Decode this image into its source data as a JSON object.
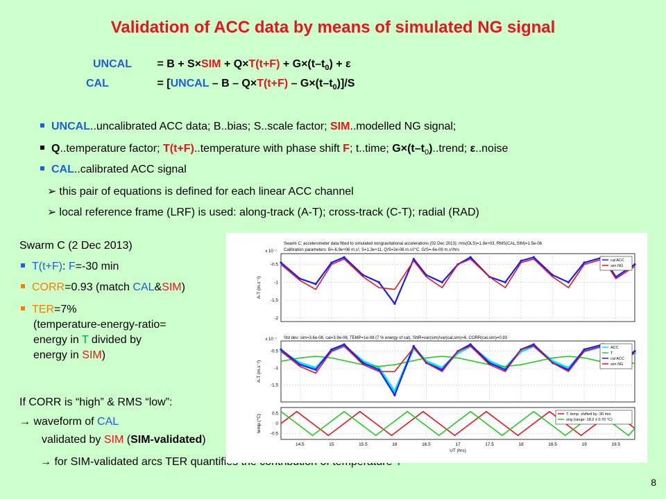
{
  "slide": {
    "title": "Validation of ACC data by means of simulated NG signal",
    "page_number": "8"
  },
  "equations": {
    "uncal_lhs": "UNCAL",
    "uncal_rhs": [
      "= B + S×",
      "SIM",
      " + Q×",
      "T(t+F)",
      " + G×(t–t",
      "0",
      ") + ε"
    ],
    "cal_lhs": "CAL",
    "cal_rhs": [
      "= [",
      "UNCAL",
      " – B – Q×",
      "T(t+F)",
      " – G×(t–t",
      "0",
      ")]/S"
    ]
  },
  "bullets": {
    "b1": [
      "UNCAL",
      "..uncalibrated ACC data; B..bias; S..scale factor; ",
      "SIM",
      "..modelled NG signal;"
    ],
    "b2": [
      "Q",
      "..temperature factor; ",
      "T(t+F)",
      "..temperature with phase shift ",
      "F",
      "; t..time; ",
      "G×(t–t",
      "0",
      ")",
      "..trend; ",
      "ε",
      "..noise"
    ],
    "b3": [
      "CAL",
      "..calibrated ACC signal"
    ],
    "sub1": "this pair of equations is defined for each linear ACC channel",
    "sub2": "local reference frame (LRF) is used: along-track (A-T); cross-track (C-T); radial (RAD)"
  },
  "left": {
    "heading": "Swarm C (2 Dec 2013)",
    "i1": [
      "T(t+F)",
      ": ",
      "F",
      "=-30 min"
    ],
    "i2": [
      "CORR",
      "=0.93 (match ",
      "CAL",
      "&",
      "SIM",
      ")"
    ],
    "i3": [
      "TER",
      "=7%"
    ],
    "i3_l2": "(temperature-energy-ratio=",
    "i3_l3": [
      "energy in ",
      "T",
      " divided by"
    ],
    "i3_l4": [
      "energy in ",
      "SIM",
      ")"
    ],
    "corr": "If CORR  is “high” & RMS “low”:",
    "arrow1": [
      "→ waveform of ",
      "CAL"
    ],
    "arrow1b": [
      "validated by ",
      "SIM",
      " (",
      "SIM-validated",
      ")"
    ],
    "arrow2": [
      "→ for SIM-validated arcs TER quantifies the contribution of temperature ",
      "T"
    ]
  },
  "colors": {
    "background": "#ccffcc",
    "title_red": "#e8141e",
    "blue": "#1f5fd6",
    "orange": "#ff7a00",
    "green": "#00a44a",
    "cal_acc": "#1a1aff",
    "acc": "#00e5ff",
    "temp": "#22cc22",
    "sim": "#e8141e"
  },
  "chart_data": [
    {
      "type": "line",
      "title": "Swarm C: accelerometer data fitted to simulated nongravitational accelerations (02 Dec 2013): rms(OLS)=1.9e+03, RMS(CAL,SIM)=1.5e-06",
      "subtitle": "Calibration parameters: B=-6.9e+06 m.s², S=1.3e+11, Q/S=2e-06 m.s²/°C, G/S=-6e-09 m.s²/hrs",
      "ylabel": "A-T (m.s⁻²)",
      "yscale_label": "x 10⁻⁷",
      "yticks": [
        "-0.5",
        "-1",
        "-1.5",
        "-2"
      ],
      "ylim": [
        -2.1,
        -0.2
      ],
      "xlim": [
        14.2,
        19.8
      ],
      "series": [
        {
          "name": "cal ACC",
          "x": [
            14.2,
            14.5,
            14.75,
            15.0,
            15.2,
            15.5,
            15.75,
            16.0,
            16.3,
            16.5,
            16.75,
            17.0,
            17.2,
            17.5,
            17.75,
            18.0,
            18.2,
            18.5,
            18.75,
            19.0,
            19.3,
            19.5,
            19.8
          ],
          "values": [
            -0.45,
            -0.9,
            -1.05,
            -0.45,
            -0.3,
            -0.8,
            -1.0,
            -1.6,
            -0.35,
            -0.8,
            -1.0,
            -0.5,
            -0.3,
            -0.85,
            -1.0,
            -0.4,
            -0.3,
            -0.8,
            -1.0,
            -0.45,
            -0.3,
            -0.85,
            -0.5
          ]
        },
        {
          "name": "sim NG",
          "x": [
            14.2,
            14.5,
            14.75,
            15.0,
            15.2,
            15.5,
            15.75,
            16.0,
            16.3,
            16.5,
            16.75,
            17.0,
            17.2,
            17.5,
            17.75,
            18.0,
            18.2,
            18.5,
            18.75,
            19.0,
            19.3,
            19.5,
            19.8
          ],
          "values": [
            -0.5,
            -0.95,
            -1.2,
            -0.5,
            -0.35,
            -0.85,
            -1.15,
            -1.2,
            -0.4,
            -0.85,
            -1.15,
            -0.5,
            -0.35,
            -0.85,
            -1.15,
            -0.45,
            -0.35,
            -0.85,
            -1.15,
            -0.5,
            -0.35,
            -0.9,
            -0.55
          ]
        }
      ],
      "legend": "top-right"
    },
    {
      "type": "line",
      "title": "Std dev: sim=3.6e-08, cal=3.9e-08, TEMP=1e-08 (7 % energy of cal), SNR=var(sim)/var(cal,sim)=6, CORR(cal,sim)=0.93",
      "ylabel": "A-T (m.s⁻²)",
      "yscale_label": "x 10⁻⁷",
      "yticks": [
        "-0.5",
        "-1",
        "-1.5"
      ],
      "ylim": [
        -2.0,
        -0.2
      ],
      "xlim": [
        14.2,
        19.8
      ],
      "series": [
        {
          "name": "ACC",
          "x": [
            14.2,
            14.5,
            14.75,
            15.0,
            15.2,
            15.5,
            15.75,
            16.0,
            16.3,
            16.5,
            16.75,
            17.0,
            17.2,
            17.5,
            17.75,
            18.0,
            18.2,
            18.5,
            18.75,
            19.0,
            19.3,
            19.5,
            19.8
          ],
          "values": [
            -0.5,
            -0.85,
            -1.0,
            -0.5,
            -0.35,
            -0.8,
            -1.0,
            -1.7,
            -0.4,
            -0.8,
            -1.0,
            -0.55,
            -0.35,
            -0.8,
            -1.0,
            -0.5,
            -0.35,
            -0.8,
            -1.0,
            -0.5,
            -0.35,
            -0.8,
            -0.55
          ]
        },
        {
          "name": "T",
          "x": [
            14.2,
            14.5,
            14.75,
            15.0,
            15.25,
            15.5,
            15.75,
            16.0,
            16.25,
            16.5,
            16.75,
            17.0,
            17.25,
            17.5,
            17.75,
            18.0,
            18.25,
            18.5,
            18.75,
            19.0,
            19.25,
            19.5,
            19.8
          ],
          "values": [
            -0.8,
            -0.7,
            -0.65,
            -0.7,
            -0.8,
            -0.9,
            -0.95,
            -0.9,
            -0.8,
            -0.7,
            -0.65,
            -0.7,
            -0.8,
            -0.9,
            -0.95,
            -0.9,
            -0.8,
            -0.7,
            -0.65,
            -0.7,
            -0.8,
            -0.9,
            -0.85
          ]
        },
        {
          "name": "cal ACC",
          "x": [
            14.2,
            14.5,
            14.75,
            15.0,
            15.2,
            15.5,
            15.75,
            16.0,
            16.3,
            16.5,
            16.75,
            17.0,
            17.2,
            17.5,
            17.75,
            18.0,
            18.2,
            18.5,
            18.75,
            19.0,
            19.3,
            19.5,
            19.8
          ],
          "values": [
            -0.45,
            -0.9,
            -1.05,
            -0.45,
            -0.3,
            -0.85,
            -1.05,
            -1.8,
            -0.35,
            -0.85,
            -1.05,
            -0.5,
            -0.3,
            -0.85,
            -1.05,
            -0.45,
            -0.3,
            -0.85,
            -1.05,
            -0.45,
            -0.3,
            -0.85,
            -0.5
          ]
        },
        {
          "name": "sim NG",
          "x": [
            14.2,
            14.5,
            14.75,
            15.0,
            15.2,
            15.5,
            15.75,
            16.0,
            16.3,
            16.5,
            16.75,
            17.0,
            17.2,
            17.5,
            17.75,
            18.0,
            18.2,
            18.5,
            18.75,
            19.0,
            19.3,
            19.5,
            19.8
          ],
          "values": [
            -0.5,
            -0.95,
            -1.15,
            -0.5,
            -0.35,
            -0.9,
            -1.1,
            -1.1,
            -0.4,
            -0.85,
            -1.1,
            -0.5,
            -0.35,
            -0.9,
            -1.1,
            -0.45,
            -0.35,
            -0.85,
            -1.1,
            -0.5,
            -0.35,
            -0.9,
            -0.55
          ]
        }
      ],
      "legend": "top-right"
    },
    {
      "type": "line",
      "ylabel": "temp (°C)",
      "xlabel": "UT (hrs)",
      "xticks": [
        "14.5",
        "15",
        "15.5",
        "16",
        "16.5",
        "17",
        "17.5",
        "18",
        "18.5",
        "19",
        "19.5"
      ],
      "xtick_values": [
        14.5,
        15,
        15.5,
        16,
        16.5,
        17,
        17.5,
        18,
        18.5,
        19,
        19.5
      ],
      "yticks": [
        "0.5",
        "0",
        "-0.5"
      ],
      "ytick_values": [
        0.5,
        0,
        -0.5
      ],
      "ylim": [
        -0.8,
        0.8
      ],
      "xlim": [
        14.2,
        19.8
      ],
      "series": [
        {
          "name": "T: temp. shifted by -30 min",
          "x": [
            14.2,
            14.45,
            14.7,
            14.95,
            15.2,
            15.45,
            15.7,
            15.95,
            16.2,
            16.45,
            16.7,
            16.95,
            17.2,
            17.45,
            17.7,
            17.95,
            18.2,
            18.45,
            18.7,
            18.95,
            19.2,
            19.45,
            19.7,
            19.8
          ],
          "values": [
            0.0,
            0.6,
            0.0,
            -0.6,
            0.0,
            0.6,
            0.0,
            -0.6,
            0.0,
            0.6,
            0.0,
            -0.6,
            0.0,
            0.6,
            0.0,
            -0.6,
            0.0,
            0.6,
            0.0,
            -0.6,
            0.0,
            0.6,
            0.0,
            -0.25
          ]
        },
        {
          "name": "orig (range: 18.2 ± 0.70 °C)",
          "x": [
            14.2,
            14.45,
            14.7,
            14.95,
            15.2,
            15.45,
            15.7,
            15.95,
            16.2,
            16.45,
            16.7,
            16.95,
            17.2,
            17.45,
            17.7,
            17.95,
            18.2,
            18.45,
            18.7,
            18.95,
            19.2,
            19.45,
            19.7,
            19.8
          ],
          "values": [
            0.6,
            0.0,
            -0.6,
            0.0,
            0.6,
            0.0,
            -0.6,
            0.0,
            0.6,
            0.0,
            -0.6,
            0.0,
            0.6,
            0.0,
            -0.6,
            0.0,
            0.6,
            0.0,
            -0.6,
            0.0,
            0.6,
            0.0,
            -0.6,
            -0.25
          ]
        }
      ],
      "legend": "top-right"
    }
  ]
}
